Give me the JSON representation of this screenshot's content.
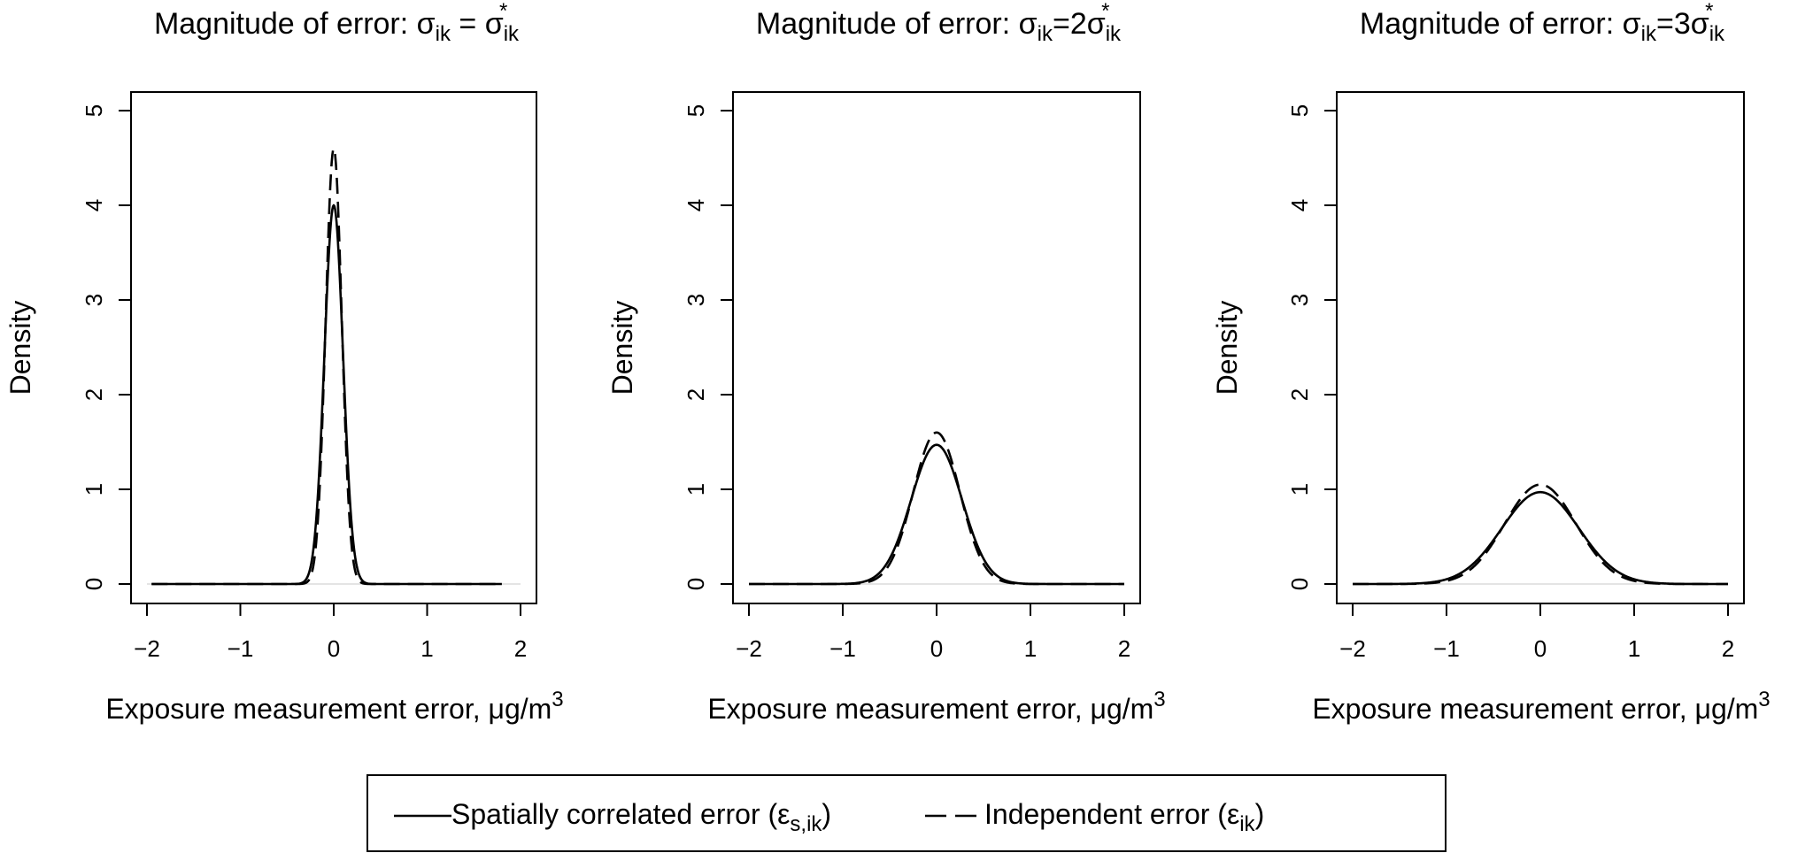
{
  "chart_data": [
    {
      "type": "line",
      "title": {
        "prefix": "Magnitude of error: ",
        "lhs": "σ",
        "lhs_sub": "ik",
        "op": " = ",
        "mult": "",
        "rhs": "σ",
        "rhs_sub": "ik",
        "rhs_sup": "*"
      },
      "xlabel": {
        "text": "Exposure measurement error, ",
        "unit": "μg/m",
        "unit_sup": "3"
      },
      "ylabel": "Density",
      "xlim": [
        -2,
        2
      ],
      "ylim": [
        0,
        5
      ],
      "xticks": [
        "−2",
        "−1",
        "0",
        "1",
        "2"
      ],
      "yticks": [
        "0",
        "1",
        "2",
        "3",
        "4",
        "5"
      ],
      "x_range": [
        -1.95,
        1.8
      ],
      "series": [
        {
          "name": "Spatially correlated error",
          "style": "solid",
          "peak": 4.0,
          "sd": 0.0997
        },
        {
          "name": "Independent error",
          "style": "dashed",
          "peak": 4.6,
          "sd": 0.0867
        }
      ]
    },
    {
      "type": "line",
      "title": {
        "prefix": "Magnitude of error: ",
        "lhs": "σ",
        "lhs_sub": "ik",
        "op": "=",
        "mult": "2",
        "rhs": "σ",
        "rhs_sub": "ik",
        "rhs_sup": "*"
      },
      "xlabel": {
        "text": "Exposure measurement error, ",
        "unit": "μg/m",
        "unit_sup": "3"
      },
      "ylabel": "Density",
      "xlim": [
        -2,
        2
      ],
      "ylim": [
        0,
        5
      ],
      "xticks": [
        "−2",
        "−1",
        "0",
        "1",
        "2"
      ],
      "yticks": [
        "0",
        "1",
        "2",
        "3",
        "4",
        "5"
      ],
      "x_range": [
        -2.0,
        2.0
      ],
      "series": [
        {
          "name": "Spatially correlated error",
          "style": "solid",
          "peak": 1.47,
          "sd": 0.271
        },
        {
          "name": "Independent error",
          "style": "dashed",
          "peak": 1.6,
          "sd": 0.249
        }
      ]
    },
    {
      "type": "line",
      "title": {
        "prefix": "Magnitude of error: ",
        "lhs": "σ",
        "lhs_sub": "ik",
        "op": "=",
        "mult": "3",
        "rhs": "σ",
        "rhs_sub": "ik",
        "rhs_sup": "*"
      },
      "xlabel": {
        "text": "Exposure measurement error, ",
        "unit": "μg/m",
        "unit_sup": "3"
      },
      "ylabel": "Density",
      "xlim": [
        -2,
        2
      ],
      "ylim": [
        0,
        5
      ],
      "xticks": [
        "−2",
        "−1",
        "0",
        "1",
        "2"
      ],
      "yticks": [
        "0",
        "1",
        "2",
        "3",
        "4",
        "5"
      ],
      "x_range": [
        -2.0,
        2.0
      ],
      "series": [
        {
          "name": "Spatially correlated error",
          "style": "solid",
          "peak": 0.97,
          "sd": 0.411
        },
        {
          "name": "Independent error",
          "style": "dashed",
          "peak": 1.05,
          "sd": 0.38
        }
      ]
    }
  ],
  "legend": {
    "items": [
      {
        "style": "solid",
        "label": "Spatially correlated error (",
        "sym": "ε",
        "sub": "s,ik",
        "close": ")"
      },
      {
        "style": "dashed",
        "label": "Independent error (",
        "sym": "ε",
        "sub": "ik",
        "close": ")"
      }
    ]
  }
}
